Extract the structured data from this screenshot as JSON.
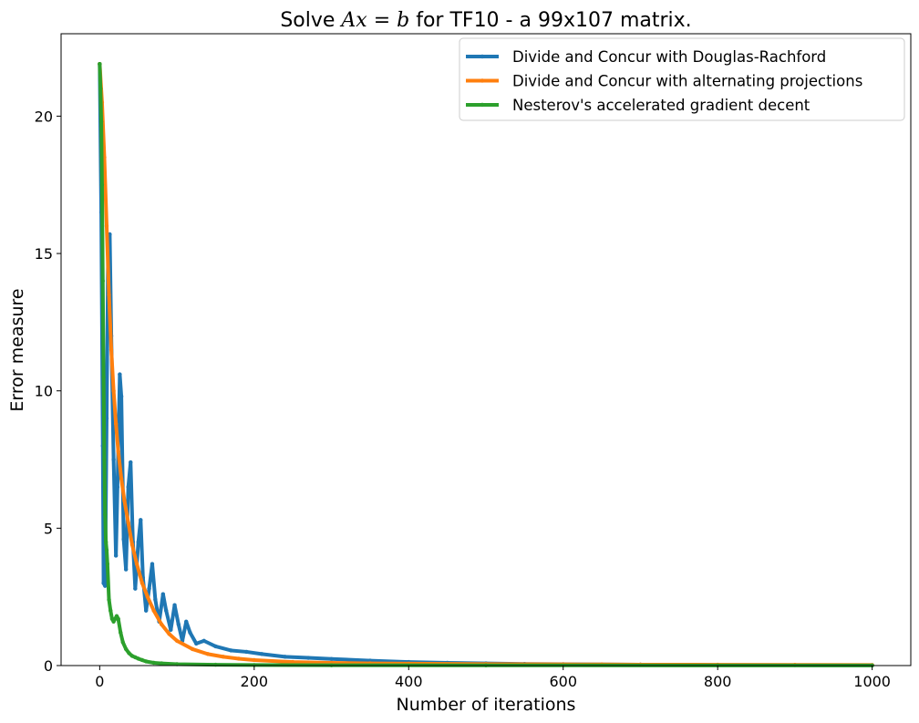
{
  "chart_data": {
    "type": "line",
    "title": {
      "prefix": "Solve ",
      "math_a": "Ax",
      "math_eq": " = ",
      "math_b": "b",
      "suffix": " for TF10 - a 99x107 matrix."
    },
    "xlabel": "Number of iterations",
    "ylabel": "Error measure",
    "xlim": [
      -50,
      1050
    ],
    "ylim": [
      0,
      23
    ],
    "x_ticks": [
      0,
      200,
      400,
      600,
      800,
      1000
    ],
    "y_ticks": [
      0,
      5,
      10,
      15,
      20
    ],
    "x_tick_labels": [
      "0",
      "200",
      "400",
      "600",
      "800",
      "1000"
    ],
    "y_tick_labels": [
      "0",
      "5",
      "10",
      "15",
      "20"
    ],
    "grid": false,
    "legend_position": "top-right",
    "series": [
      {
        "name": "Divide and Concur with Douglas-Rachford",
        "color": "#1f77b4",
        "points": [
          [
            0,
            21.9
          ],
          [
            2,
            16.5
          ],
          [
            4,
            8.0
          ],
          [
            5,
            3.0
          ],
          [
            7,
            2.9
          ],
          [
            9,
            9.0
          ],
          [
            11,
            15.6
          ],
          [
            13,
            15.7
          ],
          [
            15,
            12.0
          ],
          [
            18,
            7.5
          ],
          [
            21,
            4.0
          ],
          [
            23,
            6.5
          ],
          [
            26,
            10.6
          ],
          [
            28,
            9.8
          ],
          [
            31,
            4.6
          ],
          [
            34,
            3.5
          ],
          [
            37,
            6.5
          ],
          [
            40,
            7.4
          ],
          [
            43,
            4.5
          ],
          [
            46,
            2.8
          ],
          [
            50,
            4.5
          ],
          [
            53,
            5.3
          ],
          [
            56,
            3.2
          ],
          [
            60,
            2.0
          ],
          [
            64,
            2.8
          ],
          [
            68,
            3.7
          ],
          [
            72,
            2.4
          ],
          [
            77,
            1.6
          ],
          [
            82,
            2.6
          ],
          [
            86,
            2.0
          ],
          [
            92,
            1.3
          ],
          [
            97,
            2.2
          ],
          [
            102,
            1.5
          ],
          [
            107,
            0.9
          ],
          [
            112,
            1.6
          ],
          [
            117,
            1.2
          ],
          [
            125,
            0.8
          ],
          [
            135,
            0.9
          ],
          [
            150,
            0.7
          ],
          [
            170,
            0.55
          ],
          [
            190,
            0.5
          ],
          [
            210,
            0.42
          ],
          [
            240,
            0.32
          ],
          [
            270,
            0.28
          ],
          [
            300,
            0.24
          ],
          [
            350,
            0.18
          ],
          [
            400,
            0.13
          ],
          [
            450,
            0.1
          ],
          [
            500,
            0.08
          ],
          [
            550,
            0.06
          ],
          [
            600,
            0.05
          ],
          [
            650,
            0.04
          ],
          [
            700,
            0.035
          ],
          [
            800,
            0.02
          ],
          [
            900,
            0.015
          ],
          [
            1000,
            0.01
          ]
        ]
      },
      {
        "name": "Divide and Concur with alternating projections",
        "color": "#ff7f0e",
        "points": [
          [
            0,
            21.9
          ],
          [
            3,
            20.5
          ],
          [
            6,
            18.5
          ],
          [
            9,
            16.0
          ],
          [
            12,
            13.5
          ],
          [
            15,
            11.5
          ],
          [
            18,
            10.0
          ],
          [
            21,
            8.8
          ],
          [
            24,
            7.8
          ],
          [
            28,
            6.8
          ],
          [
            32,
            6.0
          ],
          [
            37,
            5.2
          ],
          [
            42,
            4.4
          ],
          [
            48,
            3.7
          ],
          [
            55,
            3.0
          ],
          [
            62,
            2.5
          ],
          [
            70,
            2.0
          ],
          [
            80,
            1.5
          ],
          [
            90,
            1.15
          ],
          [
            100,
            0.9
          ],
          [
            120,
            0.6
          ],
          [
            140,
            0.42
          ],
          [
            160,
            0.32
          ],
          [
            180,
            0.25
          ],
          [
            200,
            0.2
          ],
          [
            250,
            0.13
          ],
          [
            300,
            0.1
          ],
          [
            350,
            0.08
          ],
          [
            400,
            0.07
          ],
          [
            500,
            0.055
          ],
          [
            600,
            0.045
          ],
          [
            650,
            0.04
          ],
          [
            700,
            0.035
          ],
          [
            800,
            0.03
          ],
          [
            900,
            0.025
          ],
          [
            1000,
            0.02
          ]
        ]
      },
      {
        "name": "Nesterov's accelerated gradient decent",
        "color": "#2ca02c",
        "points": [
          [
            0,
            21.9
          ],
          [
            1,
            21.0
          ],
          [
            2,
            19.8
          ],
          [
            3,
            17.5
          ],
          [
            4,
            14.0
          ],
          [
            5,
            10.5
          ],
          [
            6,
            7.5
          ],
          [
            7,
            5.5
          ],
          [
            8,
            4.5
          ],
          [
            9,
            4.2
          ],
          [
            10,
            3.7
          ],
          [
            12,
            2.4
          ],
          [
            14,
            2.0
          ],
          [
            16,
            1.7
          ],
          [
            18,
            1.6
          ],
          [
            20,
            1.7
          ],
          [
            22,
            1.8
          ],
          [
            24,
            1.7
          ],
          [
            27,
            1.2
          ],
          [
            30,
            0.85
          ],
          [
            34,
            0.6
          ],
          [
            38,
            0.45
          ],
          [
            42,
            0.35
          ],
          [
            46,
            0.3
          ],
          [
            50,
            0.25
          ],
          [
            55,
            0.2
          ],
          [
            60,
            0.15
          ],
          [
            70,
            0.1
          ],
          [
            80,
            0.08
          ],
          [
            100,
            0.05
          ],
          [
            150,
            0.03
          ],
          [
            200,
            0.02
          ],
          [
            300,
            0.012
          ],
          [
            500,
            0.008
          ],
          [
            800,
            0.005
          ],
          [
            1000,
            0.004
          ]
        ]
      }
    ]
  }
}
